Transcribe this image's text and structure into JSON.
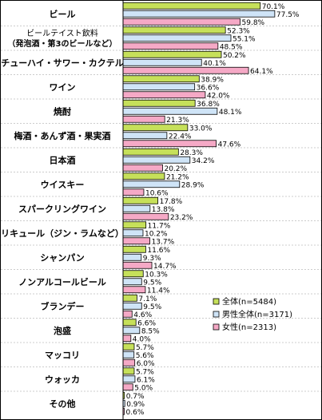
{
  "chart_data": {
    "type": "bar",
    "orientation": "horizontal",
    "xlim": [
      0,
      80
    ],
    "grid": false,
    "legend_position": "bottom-right",
    "colors": {
      "all": "#c6e05a",
      "male": "#cfe4f7",
      "female": "#f5a9c6",
      "border": "#000000"
    },
    "categories": [
      "ビール",
      "ビールテイスト飲料\n（発泡酒・第3のビールなど）",
      "チューハイ・サワー・カクテル",
      "ワイン",
      "焼酎",
      "梅酒・あんず酒・果実酒",
      "日本酒",
      "ウイスキー",
      "スパークリングワイン",
      "リキュール（ジン・ラムなど）",
      "シャンパン",
      "ノンアルコールビール",
      "ブランデー",
      "泡盛",
      "マッコリ",
      "ウォッカ",
      "その他"
    ],
    "series": [
      {
        "name": "全体(n=5484)",
        "color_key": "all",
        "values": [
          70.1,
          52.3,
          50.2,
          38.9,
          36.8,
          33.0,
          28.3,
          21.2,
          17.8,
          11.7,
          11.6,
          10.3,
          7.1,
          6.6,
          5.7,
          5.7,
          0.7
        ],
        "labels": [
          "70.1%",
          "52.3%",
          "50.2%",
          "38.9%",
          "36.8%",
          "33.0%",
          "28.3%",
          "21.2%",
          "17.8%",
          "11.7%",
          "11.6%",
          "10.3%",
          "7.1%",
          "6.6%",
          "5.7%",
          "5.7%",
          "0.7%"
        ]
      },
      {
        "name": "男性全体(n=3171)",
        "color_key": "male",
        "values": [
          77.5,
          55.1,
          40.1,
          36.6,
          48.1,
          22.4,
          34.2,
          28.9,
          13.8,
          10.2,
          9.3,
          9.5,
          9.5,
          8.5,
          5.6,
          6.1,
          0.9
        ],
        "labels": [
          "77.5%",
          "55.1%",
          "40.1%",
          "36.6%",
          "48.1%",
          "22.4%",
          "34.2%",
          "28.9%",
          "13.8%",
          "10.2%",
          "9.3%",
          "9.5%",
          "9.5%",
          "8.5%",
          "5.6%",
          "6.1%",
          "0.9%"
        ]
      },
      {
        "name": "女性(n=2313)",
        "color_key": "female",
        "values": [
          59.8,
          48.5,
          64.1,
          42.0,
          21.3,
          47.6,
          20.2,
          10.6,
          23.2,
          13.7,
          14.7,
          11.4,
          4.6,
          4.0,
          6.0,
          5.0,
          0.6
        ],
        "labels": [
          "59.8%",
          "48.5%",
          "64.1%",
          "42.0%",
          "21.3%",
          "47.6%",
          "20.2%",
          "10.6%",
          "23.2%",
          "13.7%",
          "14.7%",
          "11.4%",
          "4.6%",
          "4.0%",
          "6.0%",
          "5.0%",
          "0.6%"
        ]
      }
    ]
  }
}
